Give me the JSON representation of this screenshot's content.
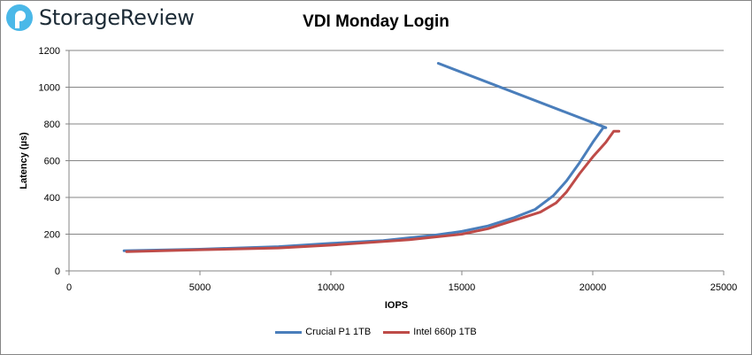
{
  "brand": {
    "name": "StorageReview",
    "color": "#4ab8e8"
  },
  "chart_data": {
    "type": "line",
    "title": "VDI Monday Login",
    "xlabel": "IOPS",
    "ylabel": "Latency (µs)",
    "xlim": [
      0,
      25000
    ],
    "ylim": [
      0,
      1200
    ],
    "xticks": [
      0,
      5000,
      10000,
      15000,
      20000,
      25000
    ],
    "yticks": [
      0,
      200,
      400,
      600,
      800,
      1000,
      1200
    ],
    "grid": "horizontal",
    "legend": "bottom",
    "series": [
      {
        "name": "Crucial P1 1TB",
        "color": "#4a7ebb",
        "x": [
          2100,
          5000,
          8000,
          10000,
          12000,
          14000,
          15000,
          16000,
          17000,
          17800,
          18500,
          19000,
          19500,
          20000,
          20400,
          20500,
          14100
        ],
        "y": [
          110,
          118,
          132,
          150,
          165,
          195,
          215,
          245,
          290,
          335,
          410,
          490,
          590,
          700,
          780,
          780,
          1130
        ]
      },
      {
        "name": "Intel 660p 1TB",
        "color": "#be4b48",
        "x": [
          2200,
          5000,
          8000,
          10000,
          13000,
          15000,
          16000,
          17000,
          18000,
          18600,
          19000,
          19500,
          20000,
          20500,
          20800,
          21000
        ],
        "y": [
          105,
          115,
          125,
          140,
          170,
          200,
          230,
          275,
          320,
          370,
          430,
          530,
          620,
          700,
          760,
          760
        ]
      }
    ]
  }
}
